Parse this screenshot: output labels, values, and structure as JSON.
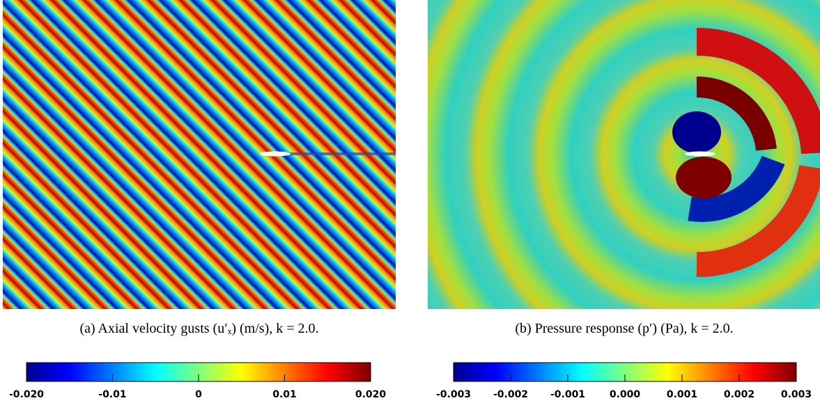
{
  "panels": [
    {
      "caption": "(a) Axial velocity gusts (u′ₓ) (m/s), k = 2.0.",
      "colorbar": {
        "lim": [
          -0.02,
          0.02
        ],
        "ticks": [
          {
            "value": -0.02,
            "label": "-0.020"
          },
          -0.01,
          0,
          0.01,
          {
            "value": 0.02,
            "label": "0.020"
          }
        ]
      }
    },
    {
      "caption": "(b) Pressure response (p′) (Pa), k = 2.0.",
      "colorbar": {
        "lim": [
          -0.003,
          0.003
        ],
        "ticks": [
          -0.003,
          -0.002,
          -0.001,
          {
            "value": 0,
            "label": "0.000"
          },
          0.001,
          0.002,
          0.003
        ]
      }
    }
  ]
}
